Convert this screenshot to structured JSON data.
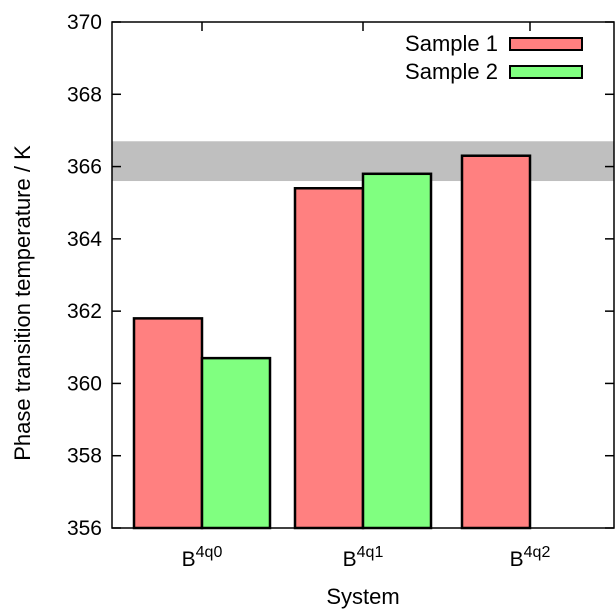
{
  "chart_data": {
    "type": "bar",
    "xlabel": "System",
    "ylabel": "Phase transition temperature / K",
    "ylim": [
      356,
      370
    ],
    "yticks": [
      356,
      358,
      360,
      362,
      364,
      366,
      368,
      370
    ],
    "categories": [
      {
        "base": "B",
        "sup": "4q0"
      },
      {
        "base": "B",
        "sup": "4q1"
      },
      {
        "base": "B",
        "sup": "4q2"
      }
    ],
    "series": [
      {
        "name": "Sample 1",
        "color": "#ff8080",
        "values": [
          361.8,
          365.4,
          366.3
        ]
      },
      {
        "name": "Sample 2",
        "color": "#80ff80",
        "values": [
          360.7,
          365.8,
          null
        ]
      }
    ],
    "reference_band": {
      "from": 365.6,
      "to": 366.7,
      "color": "#bfbfbf"
    },
    "legend_position": "top-right",
    "grid": false
  }
}
